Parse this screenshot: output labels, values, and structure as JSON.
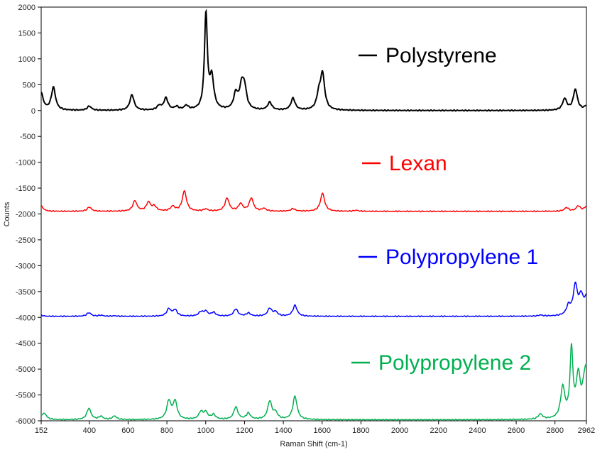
{
  "chart_data": {
    "type": "line",
    "xlabel": "Raman Shift (cm-1)",
    "ylabel": "Counts",
    "xlim": [
      152,
      2962
    ],
    "ylim": [
      -6000,
      2000
    ],
    "x_ticks": [
      152,
      400,
      600,
      800,
      1000,
      1200,
      1400,
      1600,
      1800,
      2000,
      2200,
      2400,
      2600,
      2800,
      2962
    ],
    "y_ticks": [
      2000,
      1500,
      1000,
      500,
      0,
      -500,
      -1000,
      -1500,
      -2000,
      -2500,
      -3000,
      -3500,
      -4000,
      -4500,
      -5000,
      -5500,
      -6000
    ],
    "grid": false,
    "legend_placement": "inline-right",
    "series": [
      {
        "name": "Polystyrene",
        "color": "#000000",
        "baseline": 0,
        "peaks": [
          [
            152,
            330
          ],
          [
            215,
            440
          ],
          [
            400,
            80
          ],
          [
            620,
            300
          ],
          [
            760,
            80
          ],
          [
            795,
            230
          ],
          [
            850,
            60
          ],
          [
            900,
            80
          ],
          [
            1001,
            1830
          ],
          [
            1031,
            600
          ],
          [
            1155,
            300
          ],
          [
            1185,
            410
          ],
          [
            1200,
            380
          ],
          [
            1330,
            150
          ],
          [
            1450,
            230
          ],
          [
            1583,
            260
          ],
          [
            1602,
            680
          ],
          [
            2850,
            220
          ],
          [
            2905,
            400
          ],
          [
            2962,
            80
          ]
        ]
      },
      {
        "name": "Lexan",
        "color": "#ff0000",
        "baseline": -1950,
        "peaks": [
          [
            152,
            -1850
          ],
          [
            400,
            -1870
          ],
          [
            635,
            -1750
          ],
          [
            705,
            -1780
          ],
          [
            735,
            -1860
          ],
          [
            830,
            -1860
          ],
          [
            890,
            -1560
          ],
          [
            1000,
            -1910
          ],
          [
            1110,
            -1700
          ],
          [
            1180,
            -1810
          ],
          [
            1235,
            -1700
          ],
          [
            1300,
            -1900
          ],
          [
            1450,
            -1900
          ],
          [
            1602,
            -1600
          ],
          [
            1775,
            -1930
          ],
          [
            2860,
            -1880
          ],
          [
            2920,
            -1850
          ],
          [
            2962,
            -1860
          ]
        ]
      },
      {
        "name": "Polypropylene 1",
        "color": "#0000ff",
        "baseline": -3980,
        "peaks": [
          [
            152,
            -3960
          ],
          [
            398,
            -3910
          ],
          [
            460,
            -3960
          ],
          [
            530,
            -3970
          ],
          [
            810,
            -3840
          ],
          [
            842,
            -3860
          ],
          [
            975,
            -3900
          ],
          [
            1000,
            -3890
          ],
          [
            1040,
            -3910
          ],
          [
            1155,
            -3840
          ],
          [
            1220,
            -3920
          ],
          [
            1330,
            -3830
          ],
          [
            1360,
            -3900
          ],
          [
            1460,
            -3770
          ],
          [
            2725,
            -3960
          ],
          [
            2870,
            -3800
          ],
          [
            2905,
            -3410
          ],
          [
            2935,
            -3640
          ],
          [
            2962,
            -3650
          ]
        ]
      },
      {
        "name": "Polypropylene 2",
        "color": "#00b050",
        "baseline": -5980,
        "peaks": [
          [
            152,
            -5920
          ],
          [
            170,
            -5880
          ],
          [
            398,
            -5760
          ],
          [
            460,
            -5920
          ],
          [
            530,
            -5910
          ],
          [
            810,
            -5630
          ],
          [
            842,
            -5640
          ],
          [
            975,
            -5840
          ],
          [
            1000,
            -5850
          ],
          [
            1040,
            -5890
          ],
          [
            1155,
            -5740
          ],
          [
            1220,
            -5860
          ],
          [
            1330,
            -5630
          ],
          [
            1360,
            -5860
          ],
          [
            1460,
            -5530
          ],
          [
            2725,
            -5880
          ],
          [
            2840,
            -5380
          ],
          [
            2885,
            -4680
          ],
          [
            2920,
            -5200
          ],
          [
            2950,
            -5620
          ],
          [
            2962,
            -5220
          ]
        ]
      }
    ]
  }
}
